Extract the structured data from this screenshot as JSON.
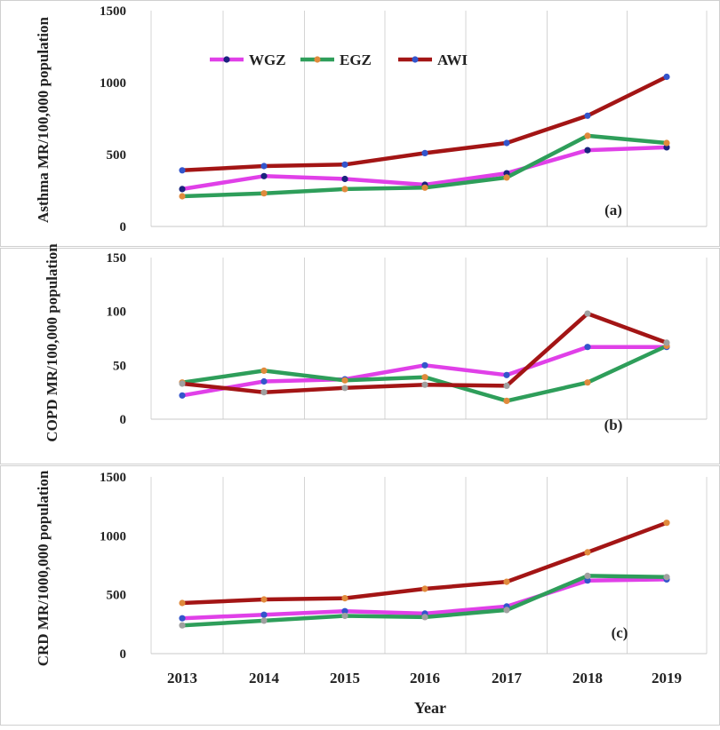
{
  "legend": [
    {
      "name": "WGZ",
      "color": "#e040e8",
      "marker": "#1a237e"
    },
    {
      "name": "EGZ",
      "color": "#2e9e5a",
      "marker": "#e08a3c"
    },
    {
      "name": "AWI",
      "color": "#a31515",
      "marker": "#3355cc"
    }
  ],
  "x_axis_label": "Year",
  "years": [
    "2013",
    "2014",
    "2015",
    "2016",
    "2017",
    "2018",
    "2019"
  ],
  "chart_data": [
    {
      "type": "line",
      "panel": "(a)",
      "ylabel": "Asthma MR/100,000 population",
      "ylim": [
        0,
        1500
      ],
      "yticks": [
        "0",
        "500",
        "1000",
        "1500"
      ],
      "categories": [
        "2013",
        "2014",
        "2015",
        "2016",
        "2017",
        "2018",
        "2019"
      ],
      "series": [
        {
          "name": "WGZ",
          "values": [
            260,
            350,
            330,
            290,
            370,
            530,
            550
          ],
          "color": "#e040e8",
          "marker": "#1a237e"
        },
        {
          "name": "EGZ",
          "values": [
            210,
            230,
            260,
            270,
            340,
            630,
            580
          ],
          "color": "#2e9e5a",
          "marker": "#e08a3c"
        },
        {
          "name": "AWI",
          "values": [
            390,
            420,
            430,
            510,
            580,
            770,
            1040
          ],
          "color": "#a31515",
          "marker": "#3355cc"
        }
      ]
    },
    {
      "type": "line",
      "panel": "(b)",
      "ylabel": "COPD MR/100,000 population",
      "ylim": [
        0,
        150
      ],
      "yticks": [
        "0",
        "50",
        "100",
        "150"
      ],
      "categories": [
        "2013",
        "2014",
        "2015",
        "2016",
        "2017",
        "2018",
        "2019"
      ],
      "series": [
        {
          "name": "WGZ",
          "values": [
            22,
            35,
            37,
            50,
            41,
            67,
            67
          ],
          "color": "#e040e8",
          "marker": "#3355cc"
        },
        {
          "name": "EGZ",
          "values": [
            34,
            45,
            36,
            39,
            17,
            34,
            68
          ],
          "color": "#2e9e5a",
          "marker": "#e08a3c"
        },
        {
          "name": "AWI",
          "values": [
            33,
            25,
            29,
            32,
            31,
            98,
            71
          ],
          "color": "#a31515",
          "marker": "#a0a0a0"
        }
      ]
    },
    {
      "type": "line",
      "panel": "(c)",
      "ylabel": "CRD MR/1000,000 population",
      "ylim": [
        0,
        1500
      ],
      "yticks": [
        "0",
        "500",
        "1000",
        "1500"
      ],
      "categories": [
        "2013",
        "2014",
        "2015",
        "2016",
        "2017",
        "2018",
        "2019"
      ],
      "series": [
        {
          "name": "WGZ",
          "values": [
            300,
            330,
            360,
            340,
            400,
            620,
            630
          ],
          "color": "#e040e8",
          "marker": "#3355cc"
        },
        {
          "name": "EGZ",
          "values": [
            240,
            280,
            320,
            310,
            370,
            660,
            650
          ],
          "color": "#2e9e5a",
          "marker": "#a0a0a0"
        },
        {
          "name": "AWI",
          "values": [
            430,
            460,
            470,
            550,
            610,
            860,
            1110
          ],
          "color": "#a31515",
          "marker": "#e08a3c"
        }
      ]
    }
  ]
}
